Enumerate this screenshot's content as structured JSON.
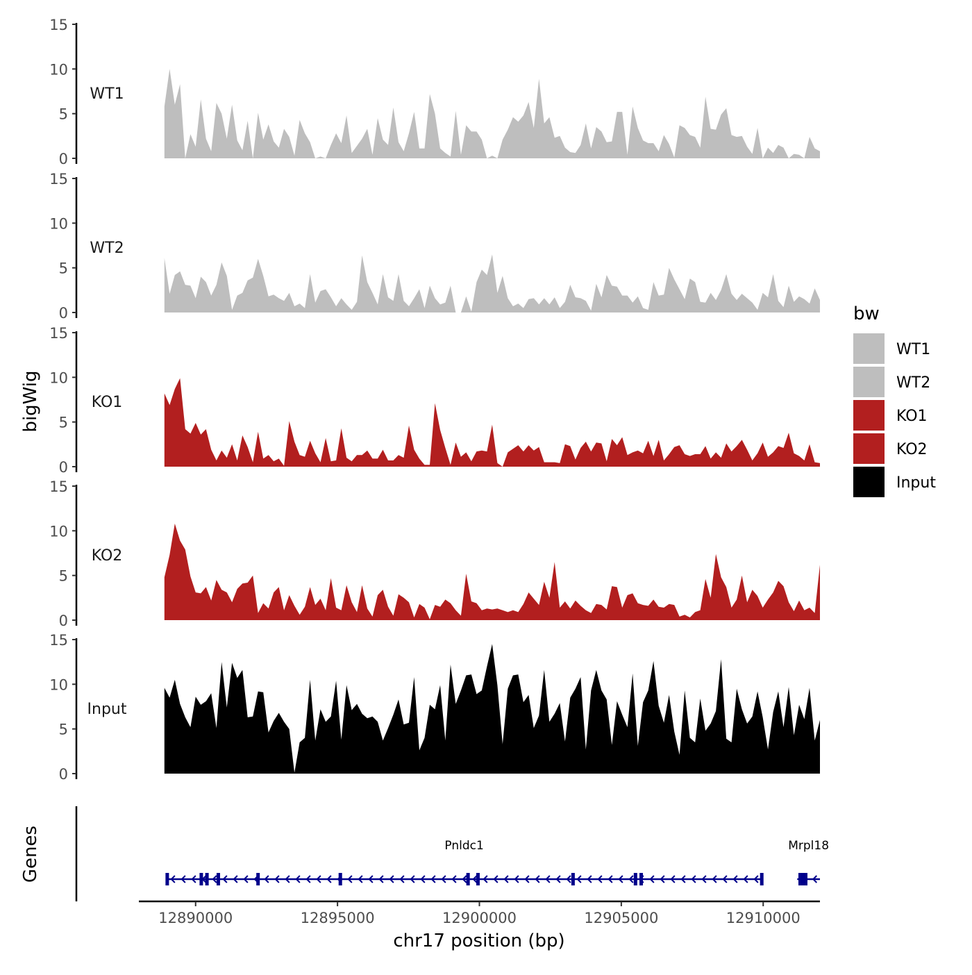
{
  "chart_data": {
    "type": "area",
    "title": "",
    "ylabel": "bigWig",
    "xlabel": "chr17 position (bp)",
    "chromosome": "chr17",
    "xlim": [
      12888000,
      12912000
    ],
    "x_range": [
      12888900,
      12912000
    ],
    "ylim": [
      0,
      15
    ],
    "y_ticks": [
      "0",
      "5",
      "10",
      "15"
    ],
    "x_ticks": [
      12890000,
      12895000,
      12900000,
      12905000,
      12910000
    ],
    "x_tick_labels": [
      "12890000",
      "12895000",
      "12900000",
      "12905000",
      "12910000"
    ],
    "legend": {
      "title": "bw",
      "position": "right",
      "entries": [
        {
          "label": "WT1",
          "color": "#bebebe"
        },
        {
          "label": "WT2",
          "color": "#bebebe"
        },
        {
          "label": "KO1",
          "color": "#b21f1f"
        },
        {
          "label": "KO2",
          "color": "#b21f1f"
        },
        {
          "label": "Input",
          "color": "#000000"
        }
      ]
    },
    "series": [
      {
        "name": "WT1",
        "color": "#bebebe",
        "values": [
          5.8,
          10.0,
          6.0,
          8.3,
          0,
          2.7,
          1.3,
          6.6,
          2.2,
          0.8,
          6.2,
          5.0,
          2.2,
          6.0,
          2.0,
          0.9,
          4.2,
          0,
          5.1,
          2.1,
          3.8,
          1.9,
          1.2,
          3.3,
          2.4,
          0.3,
          4.3,
          2.8,
          1.8,
          0,
          0.2,
          0,
          1.5,
          2.8,
          1.7,
          4.8,
          0.6,
          1.4,
          2.2,
          3.3,
          0.4,
          4.5,
          2.1,
          1.5,
          5.7,
          1.8,
          0.8,
          2.8,
          5.2,
          1.1,
          1.1,
          7.2,
          5.0,
          1.1,
          0.6,
          0.2,
          5.3,
          0.4,
          3.7,
          3.0,
          3.0,
          2.1,
          0,
          0.3,
          0,
          2.1,
          3.2,
          4.6,
          4.1,
          4.8,
          6.3,
          3.4,
          8.9,
          3.9,
          4.6,
          2.3,
          2.5,
          1.2,
          0.7,
          0.6,
          1.5,
          3.9,
          1.1,
          3.5,
          3.0,
          1.8,
          1.9,
          5.2,
          5.2,
          0.4,
          5.8,
          3.4,
          2.0,
          1.7,
          1.7,
          0.8,
          2.6,
          1.6,
          0.1,
          3.7,
          3.4,
          2.6,
          2.4,
          1.2,
          6.9,
          3.3,
          3.2,
          4.9,
          5.6,
          2.6,
          2.4,
          2.5,
          1.3,
          0.5,
          3.4,
          0,
          1.2,
          0.6,
          1.5,
          1.2,
          0,
          0.5,
          0.4,
          0,
          2.4,
          1.1,
          0.8
        ]
      },
      {
        "name": "WT2",
        "color": "#bebebe",
        "values": [
          6.1,
          2.1,
          4.2,
          4.6,
          3.1,
          3.0,
          1.6,
          4.0,
          3.4,
          1.9,
          3.1,
          5.6,
          4.1,
          0.3,
          1.9,
          2.2,
          3.6,
          3.9,
          6.0,
          4.1,
          1.8,
          2.0,
          1.6,
          1.3,
          2.2,
          0.7,
          1.0,
          0.5,
          4.3,
          1.1,
          2.4,
          2.6,
          1.7,
          0.7,
          1.6,
          0.9,
          0.3,
          1.2,
          6.4,
          3.4,
          2.2,
          0.9,
          4.3,
          1.7,
          1.3,
          4.3,
          1.3,
          0.7,
          1.6,
          2.6,
          0.5,
          3.0,
          1.6,
          0.9,
          1.1,
          3.0,
          0,
          0,
          1.8,
          0.1,
          3.4,
          4.8,
          4.2,
          6.5,
          2.2,
          4.1,
          1.6,
          0.7,
          1.0,
          0.5,
          1.5,
          1.6,
          0.9,
          1.6,
          0.9,
          1.7,
          0.5,
          1.2,
          3.1,
          1.7,
          1.6,
          1.3,
          0.2,
          3.2,
          1.7,
          4.2,
          3.0,
          2.9,
          1.9,
          1.9,
          1.1,
          1.8,
          0.5,
          0.3,
          3.4,
          1.9,
          2.0,
          5.0,
          3.7,
          2.6,
          1.5,
          3.8,
          3.4,
          1.2,
          1.1,
          2.2,
          1.4,
          2.5,
          4.3,
          2.1,
          1.4,
          2.1,
          1.6,
          1.1,
          0.3,
          2.2,
          1.7,
          4.3,
          1.3,
          0.6,
          3.0,
          1.2,
          1.8,
          1.5,
          1.0,
          2.7,
          1.4
        ]
      },
      {
        "name": "KO1",
        "color": "#b21f1f",
        "values": [
          8.2,
          6.9,
          8.7,
          9.9,
          4.2,
          3.7,
          4.9,
          3.6,
          4.2,
          1.9,
          0.7,
          1.8,
          1.0,
          2.5,
          0.7,
          3.5,
          2.2,
          0.5,
          3.9,
          0.9,
          1.3,
          0.6,
          0.9,
          0.1,
          5.1,
          2.8,
          1.3,
          1.1,
          2.9,
          1.5,
          0.5,
          3.2,
          0.6,
          0.7,
          4.3,
          1.0,
          0.6,
          1.3,
          1.3,
          1.8,
          0.9,
          0.9,
          1.9,
          0.7,
          0.7,
          1.3,
          1.0,
          4.6,
          1.9,
          0.9,
          0.2,
          0.2,
          7.1,
          4.1,
          2.1,
          0.2,
          2.7,
          1.1,
          1.6,
          0.6,
          1.7,
          1.8,
          1.7,
          4.7,
          0.4,
          0,
          1.6,
          2.0,
          2.4,
          1.7,
          2.4,
          1.8,
          2.2,
          0.5,
          0.5,
          0.5,
          0.4,
          2.5,
          2.3,
          0.8,
          2.1,
          2.8,
          1.7,
          2.7,
          2.6,
          0.6,
          3.1,
          2.4,
          3.3,
          1.3,
          1.6,
          1.8,
          1.5,
          2.9,
          1.2,
          3.0,
          0.7,
          1.4,
          2.2,
          2.4,
          1.4,
          1.2,
          1.4,
          1.4,
          2.3,
          0.9,
          1.6,
          1.0,
          2.6,
          1.7,
          2.3,
          3.0,
          1.9,
          0.7,
          1.5,
          2.7,
          1.1,
          1.6,
          2.3,
          2.1,
          3.8,
          1.5,
          1.2,
          0.7,
          2.5,
          0.5,
          0.4
        ]
      },
      {
        "name": "KO2",
        "color": "#b21f1f",
        "values": [
          4.8,
          7.3,
          10.8,
          8.9,
          7.9,
          4.9,
          3.1,
          3.0,
          3.7,
          2.2,
          4.5,
          3.4,
          3.1,
          2.0,
          3.5,
          4.1,
          4.2,
          5.0,
          0.8,
          1.9,
          1.3,
          3.1,
          3.7,
          1.1,
          2.8,
          1.6,
          0.6,
          1.5,
          3.7,
          1.7,
          2.4,
          1.1,
          4.7,
          1.4,
          1.1,
          3.9,
          2.0,
          0.9,
          3.9,
          1.3,
          0.4,
          2.8,
          3.4,
          1.5,
          0.5,
          2.9,
          2.5,
          2.0,
          0.3,
          1.8,
          1.4,
          0.1,
          1.7,
          1.5,
          2.3,
          1.9,
          1.1,
          0.5,
          5.2,
          2.1,
          1.9,
          1.1,
          1.3,
          1.2,
          1.3,
          1.1,
          0.9,
          1.1,
          0.9,
          1.8,
          3.1,
          2.4,
          1.7,
          4.3,
          2.5,
          6.5,
          1.4,
          2.1,
          1.3,
          2.2,
          1.6,
          1.1,
          0.8,
          1.8,
          1.7,
          1.2,
          3.8,
          3.7,
          1.4,
          2.8,
          3.0,
          1.9,
          1.7,
          1.6,
          2.3,
          1.5,
          1.4,
          1.8,
          1.7,
          0.4,
          0.6,
          0.3,
          0.9,
          1.1,
          4.6,
          2.5,
          7.4,
          4.8,
          3.7,
          1.4,
          2.3,
          5.0,
          2.0,
          3.4,
          2.7,
          1.4,
          2.3,
          3.1,
          4.4,
          3.8,
          2.0,
          1.0,
          2.2,
          1.1,
          1.4,
          0.8,
          6.2
        ]
      },
      {
        "name": "Input",
        "color": "#000000",
        "values": [
          9.6,
          8.5,
          10.5,
          7.8,
          6.3,
          5.2,
          8.6,
          7.7,
          8.1,
          9.0,
          5.1,
          12.5,
          7.4,
          12.4,
          10.7,
          11.6,
          6.3,
          6.4,
          9.2,
          9.1,
          4.6,
          5.9,
          6.8,
          5.8,
          5.0,
          0.1,
          3.5,
          4.0,
          10.5,
          3.7,
          7.2,
          5.8,
          6.4,
          10.4,
          3.8,
          9.9,
          7.1,
          7.8,
          6.7,
          6.2,
          6.4,
          5.8,
          3.7,
          5.1,
          6.6,
          8.3,
          5.5,
          5.7,
          10.8,
          2.6,
          4.0,
          7.7,
          7.2,
          9.9,
          3.7,
          12.2,
          7.8,
          9.3,
          11.0,
          11.1,
          8.9,
          9.3,
          12.0,
          14.5,
          9.9,
          3.3,
          9.5,
          11.0,
          11.1,
          8.0,
          8.8,
          5.1,
          6.5,
          11.6,
          5.8,
          6.7,
          7.9,
          3.6,
          8.5,
          9.5,
          10.8,
          2.7,
          9.3,
          11.6,
          9.3,
          8.3,
          3.2,
          8.1,
          6.6,
          5.2,
          11.2,
          3.1,
          8.0,
          9.3,
          12.6,
          7.6,
          5.7,
          8.8,
          4.7,
          2.1,
          9.3,
          4.0,
          3.5,
          8.4,
          4.8,
          5.6,
          7.0,
          12.8,
          3.9,
          3.5,
          9.5,
          7.2,
          5.6,
          6.4,
          9.2,
          6.3,
          2.7,
          6.9,
          9.2,
          5.2,
          9.7,
          4.3,
          7.7,
          6.1,
          9.6,
          3.7,
          6.0
        ]
      }
    ],
    "genes_track": {
      "label": "Genes",
      "strand": "-",
      "color": "#00008b",
      "genes": [
        {
          "name": "Pnldc1",
          "start": 12888950,
          "end": 12909980,
          "exons": [
            12889000,
            12890200,
            12890400,
            12890800,
            12892200,
            12895100,
            12899600,
            12899950,
            12903300,
            12905500,
            12905700,
            12909950
          ]
        },
        {
          "name": "Mrpl18",
          "start": 12911200,
          "end": 12912000,
          "exons": [
            12911400
          ]
        }
      ]
    }
  }
}
